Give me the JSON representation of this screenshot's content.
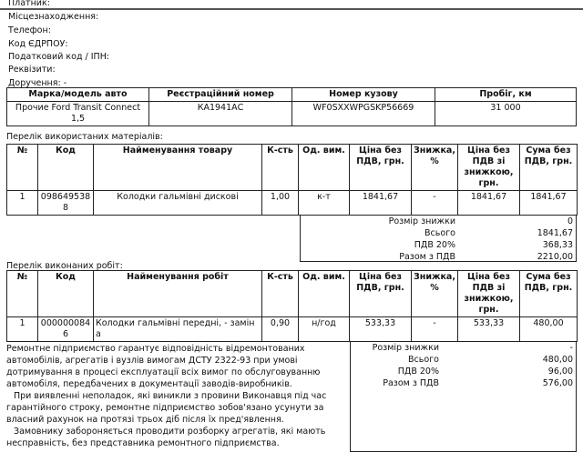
{
  "header": {
    "payer": "Платник:",
    "location": "Місцезнаходження:",
    "phone": "Телефон:",
    "edrpou": "Код ЄДРПОУ:",
    "tax": "Податковий код / ІПН:",
    "details": "Реквізити:",
    "order": "Доручення: -"
  },
  "car": {
    "headers": [
      "Марка/модель авто",
      "Реєстраційний номер",
      "Номер кузову",
      "Пробіг, км"
    ],
    "values": [
      "Прочие Ford Transit Connect 1,5",
      "КА1941АС",
      "WF0SXXWPGSKP56669",
      "31 000"
    ]
  },
  "materials": {
    "title": "Перелік використаних матеріалів:",
    "headers": [
      "№",
      "Код",
      "Найменування товару",
      "К-сть",
      "Од. вим.",
      "Ціна без ПДВ, грн.",
      "Знижка, %",
      "Ціна без ПДВ зі знижкою, грн.",
      "Сума без ПДВ, грн."
    ],
    "rows": [
      [
        "1",
        "0986495388",
        "Колодки гальмівні дискові",
        "1,00",
        "к-т",
        "1841,67",
        "-",
        "1841,67",
        "1841,67"
      ]
    ],
    "summary": [
      [
        "Розмір знижки",
        "0"
      ],
      [
        "Всього",
        "1841,67"
      ],
      [
        "ПДВ 20%",
        "368,33"
      ],
      [
        "Разом з ПДВ",
        "2210,00"
      ]
    ]
  },
  "works": {
    "title": "Перелік виконаних робіт:",
    "headers": [
      "№",
      "Код",
      "Найменування робіт",
      "К-сть",
      "Од. вим.",
      "Ціна без ПДВ, грн.",
      "Знижка, %",
      "Ціна без ПДВ зі знижкою, грн.",
      "Сума без ПДВ, грн."
    ],
    "rows": [
      [
        "1",
        "0000000846",
        "Колодки гальмівні   передні, - заміна",
        "0,90",
        "н/год",
        "533,33",
        "-",
        "533,33",
        "480,00"
      ]
    ],
    "summary": [
      [
        "Розмір знижки",
        "-"
      ],
      [
        "Всього",
        "480,00"
      ],
      [
        "ПДВ 20%",
        "96,00"
      ],
      [
        "Разом з ПДВ",
        "576,00"
      ]
    ]
  },
  "warranty": [
    "Ремонтне підприємство гарантує відповідність відремонтованих автомобілів, агрегатів і вузлів вимогам ДСТУ 2322-93 при умові дотримування в процесі експлуатації всіх вимог по обслуговуванню автомобіля, передбачених в документації заводів-виробників.",
    "При виявленні неполадок, які виникли з провини Виконавця під час гарантійного строку, ремонтне підприємство зобов'язано усунути за власний рахунок на протязі трьох діб після їх пред'явлення.",
    "Замовнику забороняється проводити розборку агрегатів, які мають несправність, без представника ремонтного підприємства."
  ]
}
